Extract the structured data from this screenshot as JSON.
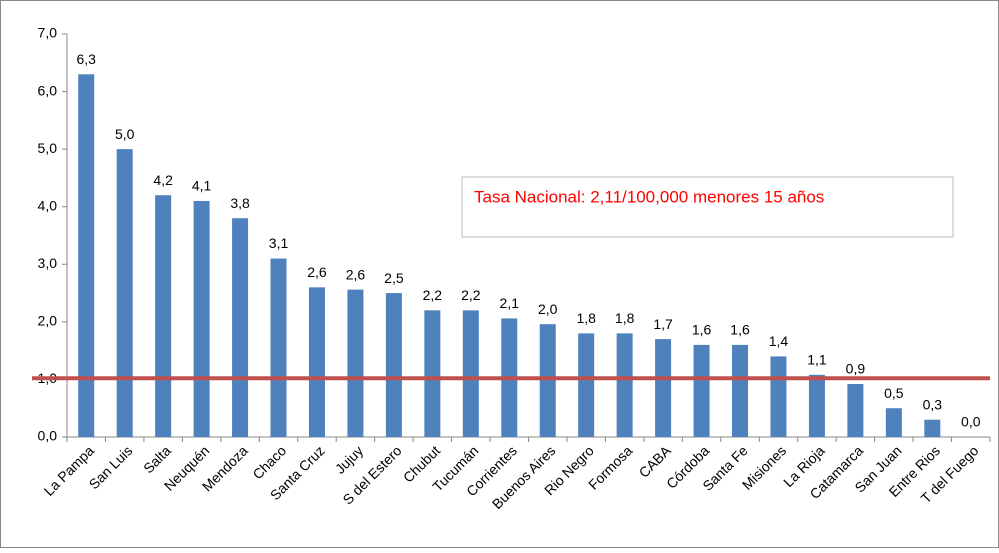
{
  "chart_data": {
    "type": "bar",
    "categories": [
      "La Pampa",
      "San Luis",
      "Salta",
      "Neuquén",
      "Mendoza",
      "Chaco",
      "Santa Cruz",
      "Jujuy",
      "S del Estero",
      "Chubut",
      "Tucumán",
      "Corrientes",
      "Buenos Aires",
      "Rio Negro",
      "Formosa",
      "CABA",
      "Córdoba",
      "Santa Fe",
      "Misiones",
      "La Rioja",
      "Catamarca",
      "San Juan",
      "Entre Rios",
      "T del Fuego"
    ],
    "values": [
      6.3,
      5.0,
      4.2,
      4.1,
      3.8,
      3.1,
      2.6,
      2.56,
      2.5,
      2.2,
      2.2,
      2.06,
      1.96,
      1.8,
      1.8,
      1.7,
      1.6,
      1.6,
      1.4,
      1.08,
      0.92,
      0.5,
      0.3,
      0.0
    ],
    "value_labels": [
      "6,3",
      "5,0",
      "4,2",
      "4,1",
      "3,8",
      "3,1",
      "2,6",
      "2,6",
      "2,5",
      "2,2",
      "2,2",
      "2,1",
      "2,0",
      "1,8",
      "1,8",
      "1,7",
      "1,6",
      "1,6",
      "1,4",
      "1,1",
      "0,9",
      "0,5",
      "0,3",
      "0,0"
    ],
    "color": "#4f81bd",
    "ylim": [
      0,
      7
    ],
    "yticks": [
      {
        "value": 0,
        "label": "0,0"
      },
      {
        "value": 1,
        "label": "1,0"
      },
      {
        "value": 2,
        "label": "2,0"
      },
      {
        "value": 3,
        "label": "3,0"
      },
      {
        "value": 4,
        "label": "4,0"
      },
      {
        "value": 5,
        "label": "5,0"
      },
      {
        "value": 6,
        "label": "6,0"
      },
      {
        "value": 7,
        "label": "7,0"
      }
    ],
    "reference_line": {
      "value": 1.02,
      "color": "#c0504d"
    },
    "annotation": "Tasa Nacional: 2,11/100,000 menores 15 años",
    "annotation_color": "#ff0000"
  }
}
